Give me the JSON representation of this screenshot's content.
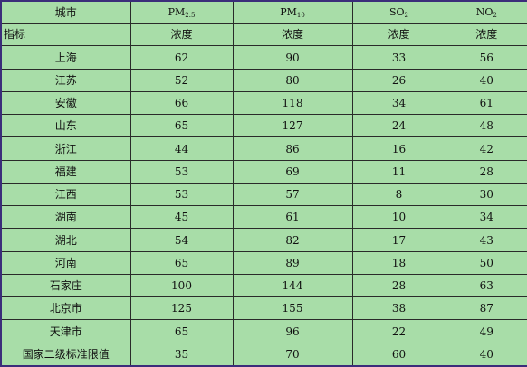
{
  "header": {
    "corner_top": "城市",
    "corner_bottom": "指标",
    "columns": [
      {
        "base": "PM",
        "sub": "2.5",
        "unit": "浓度"
      },
      {
        "base": "PM",
        "sub": "10",
        "unit": "浓度"
      },
      {
        "base": "SO",
        "sub": "2",
        "unit": "浓度"
      },
      {
        "base": "NO",
        "sub": "2",
        "unit": "浓度"
      }
    ]
  },
  "rows": [
    {
      "city": "上海",
      "pm25": "62",
      "pm10": "90",
      "so2": "33",
      "no2": "56"
    },
    {
      "city": "江苏",
      "pm25": "52",
      "pm10": "80",
      "so2": "26",
      "no2": "40"
    },
    {
      "city": "安徽",
      "pm25": "66",
      "pm10": "118",
      "so2": "34",
      "no2": "61"
    },
    {
      "city": "山东",
      "pm25": "65",
      "pm10": "127",
      "so2": "24",
      "no2": "48"
    },
    {
      "city": "浙江",
      "pm25": "44",
      "pm10": "86",
      "so2": "16",
      "no2": "42"
    },
    {
      "city": "福建",
      "pm25": "53",
      "pm10": "69",
      "so2": "11",
      "no2": "28"
    },
    {
      "city": "江西",
      "pm25": "53",
      "pm10": "57",
      "so2": "8",
      "no2": "30"
    },
    {
      "city": "湖南",
      "pm25": "45",
      "pm10": "61",
      "so2": "10",
      "no2": "34"
    },
    {
      "city": "湖北",
      "pm25": "54",
      "pm10": "82",
      "so2": "17",
      "no2": "43"
    },
    {
      "city": "河南",
      "pm25": "65",
      "pm10": "89",
      "so2": "18",
      "no2": "50"
    },
    {
      "city": "石家庄",
      "pm25": "100",
      "pm10": "144",
      "so2": "28",
      "no2": "63"
    },
    {
      "city": "北京市",
      "pm25": "125",
      "pm10": "155",
      "so2": "38",
      "no2": "87"
    },
    {
      "city": "天津市",
      "pm25": "65",
      "pm10": "96",
      "so2": "22",
      "no2": "49"
    },
    {
      "city": "国家二级标准限值",
      "pm25": "35",
      "pm10": "70",
      "so2": "60",
      "no2": "40"
    }
  ]
}
